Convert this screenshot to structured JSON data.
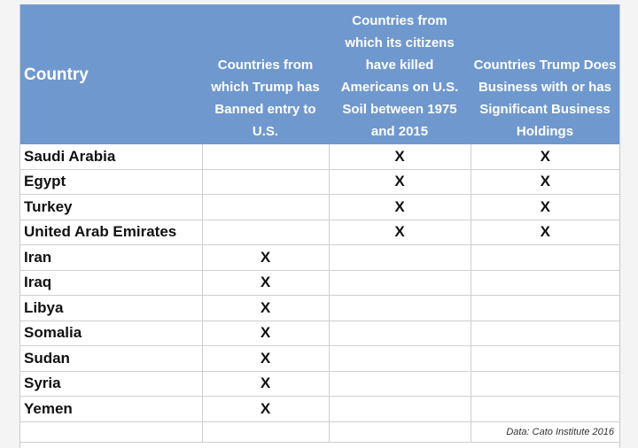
{
  "table": {
    "headers": [
      "Country",
      "Countries from which Trump has Banned entry to U.S.",
      "Countries from which its citizens have killed Americans on U.S. Soil between 1975 and 2015",
      "Countries Trump Does Business with or has Significant Business Holdings"
    ],
    "header_color": "#6f98cf",
    "rows": [
      {
        "country": "Saudi Arabia",
        "banned": "",
        "killed": "X",
        "business": "X"
      },
      {
        "country": "Egypt",
        "banned": "",
        "killed": "X",
        "business": "X"
      },
      {
        "country": "Turkey",
        "banned": "",
        "killed": "X",
        "business": "X"
      },
      {
        "country": "United Arab Emirates",
        "banned": "",
        "killed": "X",
        "business": "X"
      },
      {
        "country": "Iran",
        "banned": "X",
        "killed": "",
        "business": ""
      },
      {
        "country": "Iraq",
        "banned": "X",
        "killed": "",
        "business": ""
      },
      {
        "country": "Libya",
        "banned": "X",
        "killed": "",
        "business": ""
      },
      {
        "country": "Somalia",
        "banned": "X",
        "killed": "",
        "business": ""
      },
      {
        "country": "Sudan",
        "banned": "X",
        "killed": "",
        "business": ""
      },
      {
        "country": "Syria",
        "banned": "X",
        "killed": "",
        "business": ""
      },
      {
        "country": "Yemen",
        "banned": "X",
        "killed": "",
        "business": ""
      }
    ],
    "source_note": "Data: Cato Institute 2016"
  }
}
